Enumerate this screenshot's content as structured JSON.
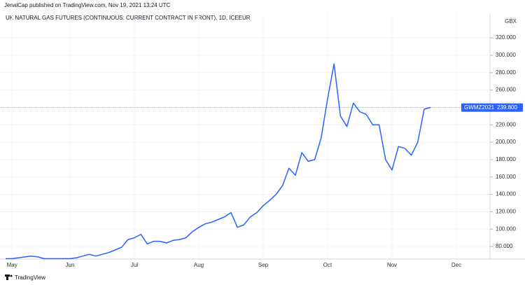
{
  "header": "JenalCap published on TradingView.com, Nov 19, 2021 13:24 UTC",
  "footer": "TradingView",
  "chart_data": {
    "type": "line",
    "title": "UK NATURAL GAS FUTURES (CONTINUOUS: CURRENT CONTRACT IN FRONT), 1D, ICEEUR",
    "currency": "GBX",
    "categories": [
      null,
      "May",
      null,
      null,
      null,
      null,
      null,
      null,
      null,
      null,
      "Jun",
      null,
      null,
      null,
      null,
      null,
      null,
      null,
      null,
      null,
      "Jul",
      null,
      null,
      null,
      null,
      null,
      null,
      null,
      null,
      null,
      "Aug",
      null,
      null,
      null,
      null,
      null,
      null,
      null,
      null,
      null,
      "Sep",
      null,
      null,
      null,
      null,
      null,
      null,
      null,
      null,
      null,
      "Oct",
      null,
      null,
      null,
      null,
      null,
      null,
      null,
      null,
      null,
      "Nov",
      null,
      null,
      null,
      null,
      null,
      null,
      null,
      null,
      null,
      "Dec",
      null,
      null,
      null,
      null,
      null
    ],
    "series": [
      {
        "name": "GWMZ2021",
        "color": "#2962ff",
        "values": [
          66,
          66,
          67,
          68,
          69,
          68,
          66,
          66,
          66,
          66,
          66,
          67,
          69,
          71,
          69,
          71,
          73,
          76,
          79,
          88,
          90,
          94,
          83,
          86,
          86,
          84,
          87,
          88,
          90,
          97,
          102,
          106,
          108,
          111,
          114,
          119,
          102,
          105,
          114,
          119,
          127,
          133,
          140,
          150,
          170,
          162,
          188,
          178,
          180,
          205,
          250,
          290,
          230,
          218,
          245,
          235,
          232,
          220,
          220,
          180,
          168,
          195,
          193,
          185,
          200,
          238,
          240,
          null,
          null,
          null,
          null,
          null,
          null,
          null,
          null,
          null
        ]
      }
    ],
    "ylim": [
      65.5,
      347.5
    ],
    "yticks": [
      {
        "value": 80,
        "label": "80.000"
      },
      {
        "value": 100,
        "label": "100.000"
      },
      {
        "value": 120,
        "label": "120.000"
      },
      {
        "value": 140,
        "label": "140.000"
      },
      {
        "value": 160,
        "label": "160.000"
      },
      {
        "value": 180,
        "label": "180.000"
      },
      {
        "value": 200,
        "label": "200.000"
      },
      {
        "value": 220,
        "label": "220.000"
      },
      {
        "value": 240,
        "label": "240.000"
      },
      {
        "value": 260,
        "label": "260.000"
      },
      {
        "value": 280,
        "label": "280.000"
      },
      {
        "value": 300,
        "label": "300.000"
      },
      {
        "value": 320,
        "label": "320.000"
      }
    ],
    "grid": true,
    "price_line": {
      "name": "GWMZ2021",
      "value": 239.8,
      "label": "239.800"
    }
  }
}
